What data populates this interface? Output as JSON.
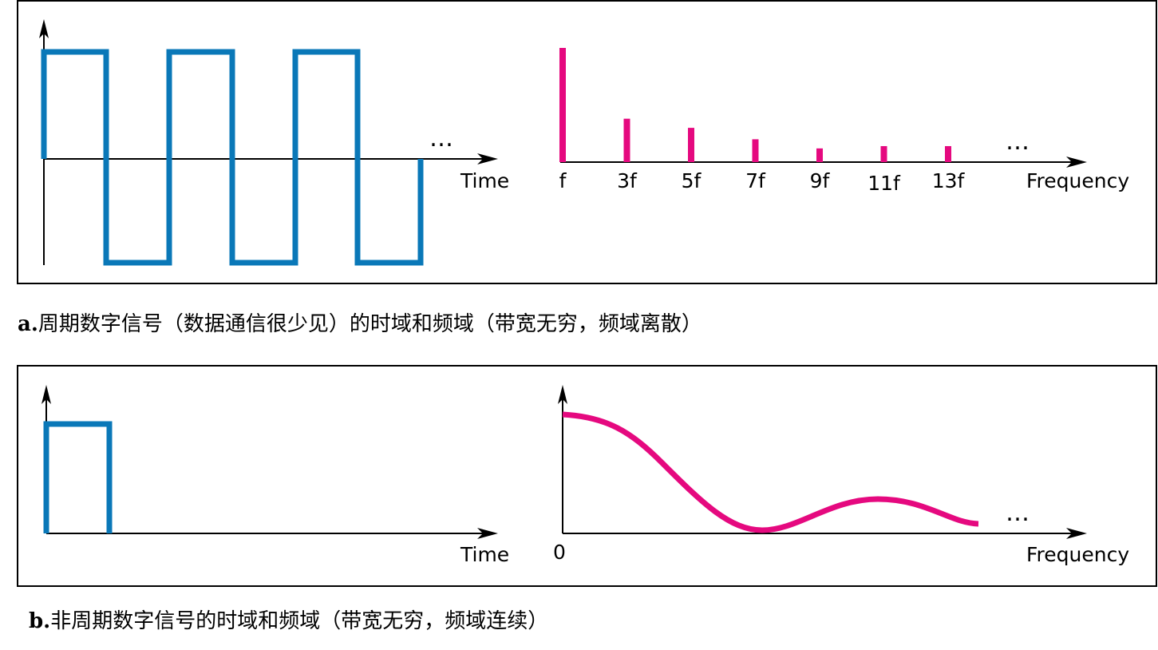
{
  "panel_a": {
    "time_label": "Time",
    "freq_label": "Frequency",
    "ellipsis": "…",
    "harmonics": [
      {
        "label": "f",
        "amplitude": 1.0
      },
      {
        "label": "3f",
        "amplitude": 0.38
      },
      {
        "label": "5f",
        "amplitude": 0.3
      },
      {
        "label": "7f",
        "amplitude": 0.2
      },
      {
        "label": "9f",
        "amplitude": 0.12
      },
      {
        "label": "11f",
        "amplitude": 0.14
      },
      {
        "label": "13f",
        "amplitude": 0.14
      }
    ],
    "caption_letter": "a.",
    "caption_text": "周期数字信号（数据通信很少见）的时域和频域（带宽无穷，频域离散）"
  },
  "panel_b": {
    "time_label": "Time",
    "freq_label": "Frequency",
    "zero_label": "0",
    "ellipsis": "…",
    "caption_letter": "b.",
    "caption_text": "非周期数字信号的时域和频域（带宽无穷，频域连续）"
  },
  "colors": {
    "time_signal": "#0a78b8",
    "spectrum": "#e5097f",
    "axis": "#000000"
  }
}
